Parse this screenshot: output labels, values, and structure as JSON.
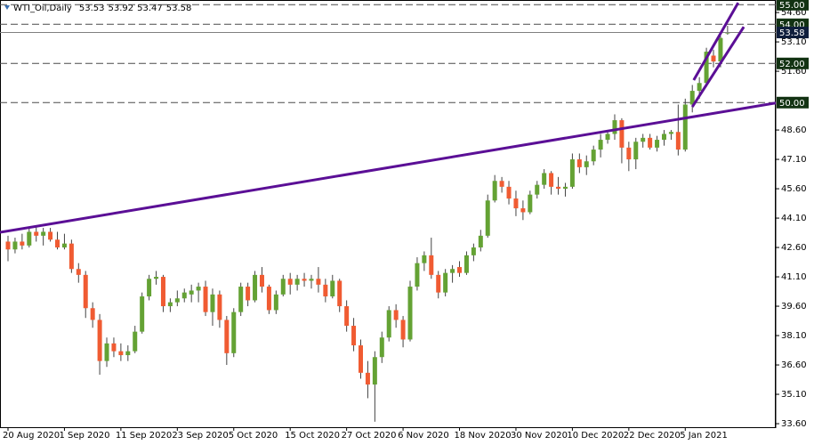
{
  "chart_data": {
    "type": "candlestick",
    "title": "WTI_Oil,Daily",
    "up_color": "#64a234",
    "down_color": "#f05b32",
    "categories": [
      "20 Aug 2020",
      null,
      null,
      null,
      null,
      null,
      null,
      null,
      "1 Sep 2020",
      null,
      null,
      null,
      null,
      null,
      null,
      null,
      "11 Sep 2020",
      null,
      null,
      null,
      null,
      null,
      null,
      null,
      "23 Sep 2020",
      null,
      null,
      null,
      null,
      null,
      null,
      null,
      "5 Oct 2020",
      null,
      null,
      null,
      null,
      null,
      null,
      null,
      "15 Oct 2020",
      null,
      null,
      null,
      null,
      null,
      null,
      null,
      "27 Oct 2020",
      null,
      null,
      null,
      null,
      null,
      null,
      null,
      "6 Nov 2020",
      null,
      null,
      null,
      null,
      null,
      null,
      null,
      "18 Nov 2020",
      null,
      null,
      null,
      null,
      null,
      null,
      null,
      "30 Nov 2020",
      null,
      null,
      null,
      null,
      null,
      null,
      null,
      "10 Dec 2020",
      null,
      null,
      null,
      null,
      null,
      null,
      null,
      "22 Dec 2020",
      null,
      null,
      null,
      null,
      null,
      null,
      null,
      "5 Jan 2021",
      null,
      null,
      null,
      null,
      null,
      null
    ],
    "open": [
      42.9,
      42.5,
      42.9,
      42.7,
      43.4,
      43.2,
      43.4,
      43.0,
      42.6,
      42.8,
      41.5,
      41.2,
      39.5,
      38.9,
      36.8,
      37.7,
      37.3,
      37.1,
      37.3,
      38.3,
      40.1,
      41.0,
      41.1,
      39.6,
      39.8,
      40.0,
      40.2,
      40.4,
      40.6,
      39.3,
      40.2,
      38.9,
      37.2,
      39.3,
      40.6,
      39.9,
      41.2,
      40.6,
      39.4,
      40.2,
      41.0,
      40.7,
      41.0,
      40.9,
      41.0,
      40.7,
      40.1,
      40.9,
      39.6,
      38.6,
      37.6,
      36.2,
      35.6,
      37.0,
      38.0,
      39.4,
      38.9,
      37.9,
      40.6,
      41.8,
      42.2,
      41.2,
      40.3,
      41.3,
      41.6,
      41.3,
      42.2,
      42.6,
      43.2,
      45.0,
      46.0,
      45.7,
      45.1,
      44.6,
      44.4,
      45.3,
      45.8,
      46.4,
      45.7,
      45.6,
      45.7,
      47.1,
      46.7,
      47.0,
      47.6,
      48.1,
      48.4,
      49.1,
      47.7,
      47.1,
      48.0,
      48.2,
      47.7,
      48.1,
      48.4,
      48.5,
      47.6,
      49.9,
      50.6,
      51.0,
      52.4,
      52.1,
      53.53
    ],
    "high": [
      43.2,
      43.1,
      43.3,
      43.6,
      43.7,
      43.6,
      43.6,
      43.4,
      43.3,
      43.0,
      41.8,
      41.4,
      39.8,
      39.2,
      38.0,
      38.0,
      37.7,
      37.6,
      38.6,
      40.3,
      41.2,
      41.4,
      41.2,
      40.0,
      40.4,
      40.5,
      40.7,
      40.8,
      40.9,
      40.5,
      40.4,
      39.1,
      39.5,
      40.8,
      40.8,
      41.4,
      41.6,
      40.7,
      40.4,
      41.2,
      41.3,
      41.2,
      41.3,
      41.2,
      41.6,
      41.0,
      41.2,
      41.0,
      39.9,
      39.0,
      37.9,
      36.8,
      37.3,
      38.3,
      39.6,
      39.7,
      39.1,
      40.9,
      42.1,
      42.4,
      43.1,
      41.4,
      41.5,
      41.7,
      41.9,
      42.4,
      42.8,
      43.5,
      45.3,
      46.3,
      46.2,
      46.0,
      45.5,
      45.0,
      45.5,
      46.0,
      46.6,
      46.5,
      46.2,
      45.9,
      47.4,
      47.4,
      47.3,
      47.8,
      48.4,
      48.6,
      49.4,
      49.2,
      48.0,
      48.2,
      48.4,
      48.4,
      48.3,
      48.6,
      48.6,
      49.9,
      50.2,
      50.9,
      51.3,
      52.8,
      52.7,
      53.4,
      53.92
    ],
    "low": [
      41.9,
      42.3,
      42.5,
      42.6,
      42.9,
      42.7,
      42.9,
      42.5,
      42.5,
      41.3,
      40.8,
      39.0,
      38.5,
      36.1,
      36.5,
      37.0,
      36.8,
      36.8,
      37.2,
      38.2,
      39.9,
      40.7,
      39.3,
      39.3,
      39.6,
      39.8,
      39.8,
      39.8,
      39.1,
      38.6,
      38.5,
      36.6,
      37.0,
      39.1,
      39.6,
      39.8,
      40.3,
      39.2,
      39.2,
      40.1,
      40.2,
      40.4,
      40.6,
      40.5,
      40.3,
      39.8,
      40.0,
      39.3,
      38.3,
      37.3,
      35.9,
      34.9,
      33.7,
      36.7,
      37.8,
      38.5,
      37.5,
      37.8,
      40.4,
      41.4,
      41.0,
      40.0,
      40.1,
      40.8,
      41.1,
      41.2,
      41.9,
      42.4,
      43.1,
      44.9,
      45.4,
      44.8,
      44.2,
      44.0,
      44.3,
      45.1,
      45.6,
      45.3,
      45.3,
      45.2,
      45.6,
      46.4,
      46.3,
      46.8,
      47.2,
      47.9,
      48.1,
      46.9,
      46.5,
      46.6,
      47.7,
      47.6,
      47.5,
      47.8,
      48.1,
      47.3,
      47.5,
      49.5,
      50.2,
      50.8,
      51.8,
      51.8,
      53.47
    ],
    "close": [
      42.5,
      42.9,
      42.7,
      43.4,
      43.2,
      43.4,
      43.0,
      42.6,
      42.8,
      41.5,
      41.2,
      39.5,
      38.9,
      36.8,
      37.7,
      37.3,
      37.1,
      37.3,
      38.3,
      40.1,
      41.0,
      41.1,
      39.6,
      39.8,
      40.0,
      40.3,
      40.4,
      40.6,
      39.3,
      40.2,
      38.9,
      37.2,
      39.3,
      40.6,
      39.9,
      41.2,
      40.6,
      39.4,
      40.2,
      41.0,
      40.7,
      41.0,
      40.9,
      41.0,
      40.7,
      40.1,
      40.9,
      39.6,
      38.6,
      37.6,
      36.2,
      35.6,
      37.0,
      38.0,
      39.4,
      38.9,
      37.9,
      40.6,
      41.8,
      42.2,
      41.2,
      40.3,
      41.3,
      41.5,
      41.3,
      42.2,
      42.6,
      43.2,
      45.0,
      46.0,
      45.7,
      45.1,
      44.6,
      44.4,
      45.3,
      45.8,
      46.4,
      45.7,
      45.6,
      45.7,
      47.1,
      46.7,
      47.0,
      47.6,
      48.1,
      48.4,
      49.1,
      47.7,
      47.1,
      48.0,
      48.2,
      47.7,
      48.1,
      48.4,
      48.5,
      47.6,
      49.9,
      50.6,
      51.0,
      52.6,
      52.1,
      53.3,
      53.58
    ],
    "ylim": [
      33.42,
      55.24
    ],
    "yticks": [
      {
        "value": 33.6,
        "label": "33.60"
      },
      {
        "value": 35.1,
        "label": "35.10"
      },
      {
        "value": 36.6,
        "label": "36.60"
      },
      {
        "value": 38.1,
        "label": "38.10"
      },
      {
        "value": 39.6,
        "label": "39.60"
      },
      {
        "value": 41.1,
        "label": "41.10"
      },
      {
        "value": 42.6,
        "label": "42.60"
      },
      {
        "value": 44.1,
        "label": "44.10"
      },
      {
        "value": 45.6,
        "label": "45.60"
      },
      {
        "value": 47.1,
        "label": "47.10"
      },
      {
        "value": 48.6,
        "label": "48.60"
      },
      {
        "value": 51.6,
        "label": "51.60"
      },
      {
        "value": 53.1,
        "label": "53.10"
      },
      {
        "value": 54.6,
        "label": "54.60"
      }
    ],
    "levels": [
      {
        "value": 55,
        "label": "55.00"
      },
      {
        "value": 54,
        "label": "54.00"
      },
      {
        "value": 52,
        "label": "52.00"
      },
      {
        "value": 50,
        "label": "50.00"
      }
    ],
    "trendline_color": "#5b0f96",
    "trendlines": [
      {
        "x": [
          0,
          102
        ],
        "y": [
          43.44,
          49.57
        ],
        "extend": true
      },
      {
        "x": [
          97.2,
          103.5
        ],
        "y": [
          51.15,
          55.1
        ],
        "extend": false
      },
      {
        "x": [
          97.0,
          104.3
        ],
        "y": [
          49.78,
          53.87
        ],
        "extend": false
      }
    ]
  }
}
